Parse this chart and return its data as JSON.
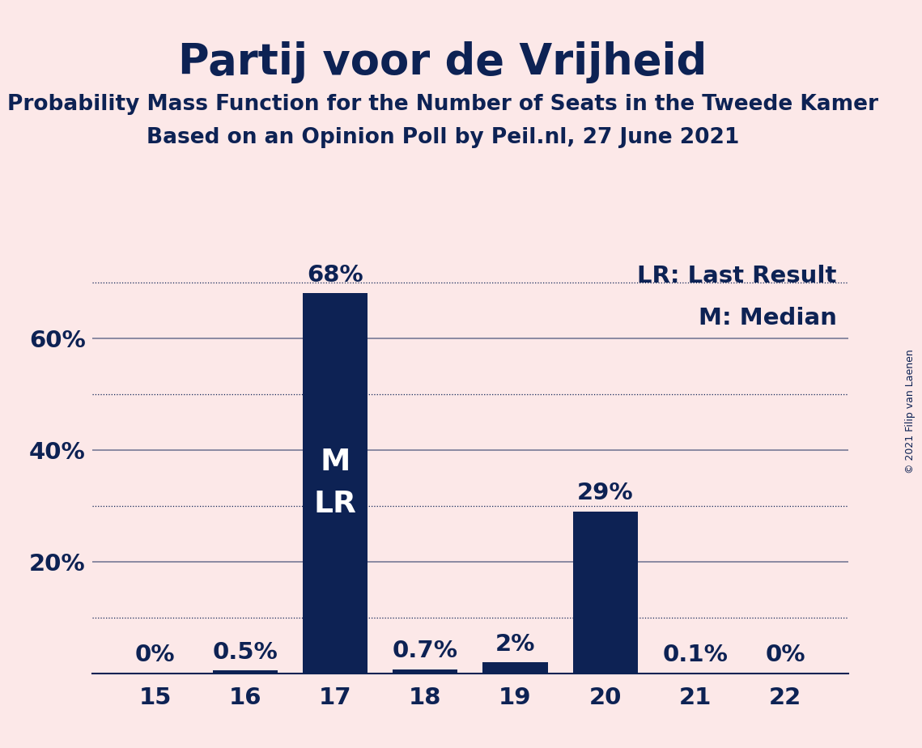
{
  "title": "Partij voor de Vrijheid",
  "subtitle1": "Probability Mass Function for the Number of Seats in the Tweede Kamer",
  "subtitle2": "Based on an Opinion Poll by Peil.nl, 27 June 2021",
  "copyright": "© 2021 Filip van Laenen",
  "seats": [
    15,
    16,
    17,
    18,
    19,
    20,
    21,
    22
  ],
  "probabilities": [
    0.0,
    0.5,
    68.0,
    0.7,
    2.0,
    29.0,
    0.1,
    0.0
  ],
  "labels": [
    "0%",
    "0.5%",
    "68%",
    "0.7%",
    "2%",
    "29%",
    "0.1%",
    "0%"
  ],
  "bar_color": "#0d2254",
  "background_color": "#fce8e8",
  "text_color": "#0d2254",
  "legend_lr": "LR: Last Result",
  "legend_m": "M: Median",
  "ml_label": "M\nLR",
  "ylim_max": 75,
  "bar_label_fontsize": 21,
  "title_fontsize": 38,
  "subtitle_fontsize": 19,
  "tick_fontsize": 21,
  "legend_fontsize": 21,
  "ml_fontsize": 27,
  "copyright_fontsize": 9,
  "dotted_lines": [
    10,
    30,
    50,
    70
  ],
  "solid_lines": [
    20,
    40,
    60
  ],
  "ytick_positions": [
    20,
    40,
    60
  ],
  "ytick_labels": [
    "20%",
    "40%",
    "60%"
  ]
}
